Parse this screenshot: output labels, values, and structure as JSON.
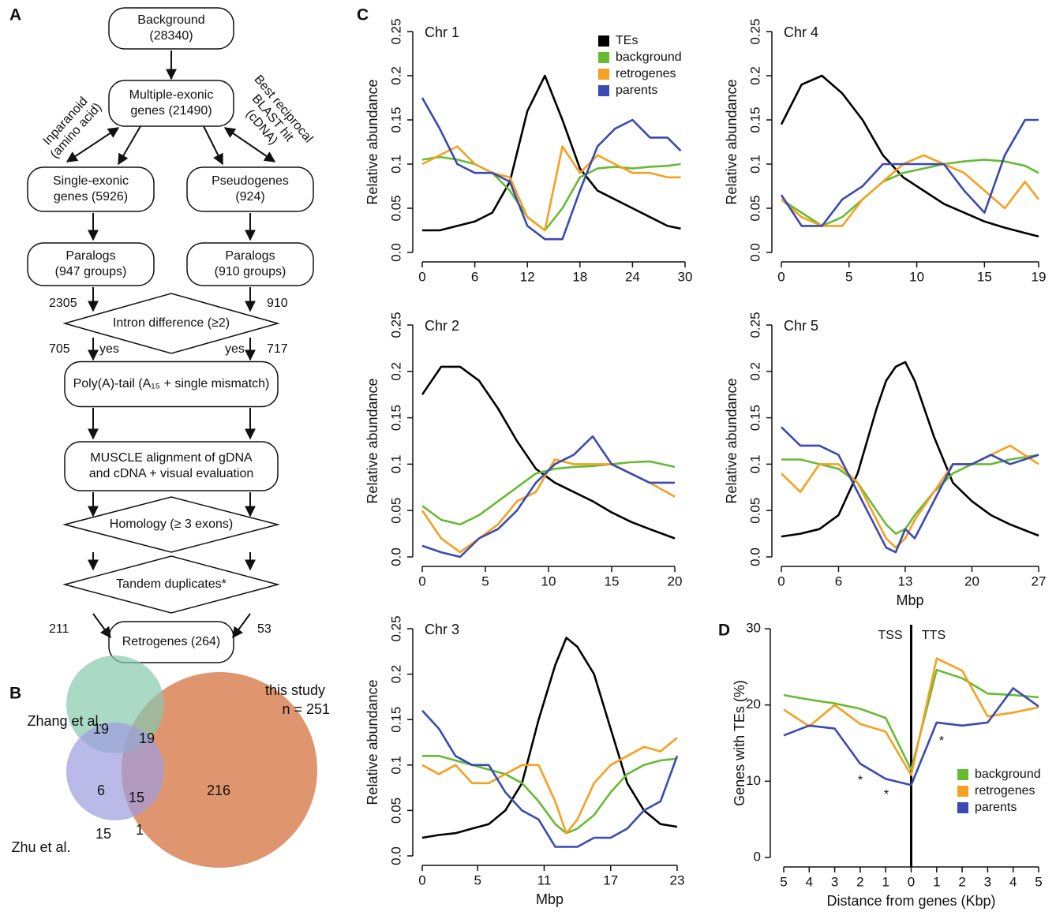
{
  "panel_labels": [
    "A",
    "B",
    "C",
    "D"
  ],
  "flowchart": {
    "nodes": [
      {
        "lines": [
          "Background",
          "(28340)"
        ]
      },
      {
        "lines": [
          "Multiple-exonic",
          "genes (21490)"
        ]
      },
      {
        "lines": [
          "Single-exonic",
          "genes (5926)"
        ]
      },
      {
        "lines": [
          "Pseudogenes",
          "(924)"
        ]
      },
      {
        "lines": [
          "Paralogs",
          "(947 groups)"
        ]
      },
      {
        "lines": [
          "Paralogs",
          "(910 groups)"
        ]
      },
      {
        "lines": [
          "Intron difference (≥2)"
        ]
      },
      {
        "lines": [
          "Poly(A)-tail (A₁₅ + single mismatch)"
        ]
      },
      {
        "lines": [
          "MUSCLE alignment of gDNA",
          "and cDNA + visual evaluation"
        ]
      },
      {
        "lines": [
          "Homology (≥ 3 exons)"
        ]
      },
      {
        "lines": [
          "Tandem duplicates*"
        ]
      },
      {
        "lines": [
          "Retrogenes (264)"
        ]
      }
    ],
    "edge_labels": [
      "2305",
      "910",
      "705",
      "yes",
      "yes",
      "717",
      "211",
      "53"
    ],
    "side_labels": [
      [
        "Inparanoid",
        "(amino acid)"
      ],
      [
        "Best reciprocal",
        "BLAST hit",
        "(cDNA)"
      ]
    ]
  },
  "venn": {
    "sets": [
      {
        "name": "Zhang et al.",
        "color": "#86c9ad"
      },
      {
        "name": "Zhu et al.",
        "color": "#9d9de0"
      },
      {
        "name": "this study",
        "color": "#d98255"
      }
    ],
    "total_label": "n = 251",
    "regions": [
      19,
      19,
      6,
      15,
      15,
      1,
      216
    ]
  },
  "chart_data": [
    {
      "type": "line",
      "title": "Chr 1",
      "y_label": "Relative abundance",
      "legend": "top-center",
      "xlim": [
        0,
        30
      ],
      "xticks": [
        0,
        6,
        12,
        18,
        24,
        30
      ],
      "ylim": [
        0,
        0.25
      ],
      "yticks": [
        {
          "value": 0,
          "label": "0.0"
        },
        0.05,
        0.1,
        0.15,
        0.2,
        0.25
      ],
      "x": [
        0,
        2,
        4,
        6,
        8,
        10,
        12,
        14,
        16,
        18,
        20,
        22,
        24,
        26,
        28,
        29.5
      ],
      "series": [
        {
          "name": "TEs",
          "color": "#000000",
          "values": [
            0.025,
            0.025,
            0.03,
            0.035,
            0.045,
            0.08,
            0.16,
            0.2,
            0.15,
            0.095,
            0.07,
            0.06,
            0.05,
            0.04,
            0.03,
            0.027
          ]
        },
        {
          "name": "background",
          "color": "#66bb33",
          "values": [
            0.105,
            0.108,
            0.105,
            0.1,
            0.09,
            0.07,
            0.04,
            0.025,
            0.05,
            0.085,
            0.095,
            0.097,
            0.095,
            0.097,
            0.098,
            0.1
          ]
        },
        {
          "name": "retrogenes",
          "color": "#f5a020",
          "values": [
            0.1,
            0.11,
            0.12,
            0.1,
            0.09,
            0.085,
            0.04,
            0.025,
            0.12,
            0.09,
            0.11,
            0.1,
            0.09,
            0.09,
            0.085,
            0.085
          ]
        },
        {
          "name": "parents",
          "color": "#3a4ab0",
          "values": [
            0.175,
            0.14,
            0.1,
            0.09,
            0.09,
            0.08,
            0.03,
            0.015,
            0.015,
            0.07,
            0.12,
            0.14,
            0.15,
            0.13,
            0.13,
            0.115
          ]
        }
      ]
    },
    {
      "type": "line",
      "title": "Chr 4",
      "y_label": "Relative abundance",
      "xlim": [
        0,
        19
      ],
      "xticks": [
        0,
        5,
        10,
        15,
        19
      ],
      "ylim": [
        0,
        0.25
      ],
      "yticks": [
        {
          "value": 0,
          "label": "0.0"
        },
        0.05,
        0.1,
        0.15,
        0.2,
        0.25
      ],
      "x": [
        0,
        1.5,
        3,
        4.5,
        6,
        7.5,
        9,
        10.5,
        12,
        13.5,
        15,
        16.5,
        18,
        19
      ],
      "series": [
        {
          "color": "#000000",
          "values": [
            0.145,
            0.19,
            0.2,
            0.18,
            0.15,
            0.11,
            0.085,
            0.07,
            0.055,
            0.045,
            0.035,
            0.028,
            0.022,
            0.018
          ]
        },
        {
          "color": "#66bb33",
          "values": [
            0.06,
            0.045,
            0.03,
            0.04,
            0.06,
            0.08,
            0.09,
            0.095,
            0.1,
            0.103,
            0.105,
            0.103,
            0.098,
            0.09
          ]
        },
        {
          "color": "#f5a020",
          "values": [
            0.06,
            0.04,
            0.03,
            0.03,
            0.06,
            0.08,
            0.1,
            0.11,
            0.1,
            0.09,
            0.07,
            0.05,
            0.08,
            0.06
          ]
        },
        {
          "color": "#3a4ab0",
          "values": [
            0.065,
            0.03,
            0.03,
            0.06,
            0.075,
            0.1,
            0.1,
            0.1,
            0.1,
            0.07,
            0.045,
            0.11,
            0.15,
            0.15
          ]
        }
      ]
    },
    {
      "type": "line",
      "title": "Chr 2",
      "y_label": "Relative abundance",
      "xlim": [
        0,
        20
      ],
      "xticks": [
        0,
        5,
        10,
        15,
        20
      ],
      "ylim": [
        0,
        0.25
      ],
      "yticks": [
        {
          "value": 0,
          "label": "0.0"
        },
        0.05,
        0.1,
        0.15,
        0.2,
        0.25
      ],
      "x": [
        0,
        1.5,
        3,
        4.5,
        6,
        7.5,
        9,
        10.5,
        12,
        13.5,
        15,
        16.5,
        18,
        20
      ],
      "series": [
        {
          "color": "#000000",
          "values": [
            0.175,
            0.205,
            0.205,
            0.19,
            0.16,
            0.125,
            0.095,
            0.08,
            0.07,
            0.06,
            0.048,
            0.038,
            0.03,
            0.02
          ]
        },
        {
          "color": "#66bb33",
          "values": [
            0.055,
            0.04,
            0.035,
            0.045,
            0.06,
            0.075,
            0.09,
            0.095,
            0.097,
            0.098,
            0.1,
            0.102,
            0.103,
            0.097
          ]
        },
        {
          "color": "#f5a020",
          "values": [
            0.05,
            0.02,
            0.005,
            0.02,
            0.035,
            0.06,
            0.07,
            0.105,
            0.1,
            0.1,
            0.1,
            0.09,
            0.08,
            0.065
          ]
        },
        {
          "color": "#3a4ab0",
          "values": [
            0.012,
            0.005,
            0,
            0.02,
            0.03,
            0.05,
            0.08,
            0.1,
            0.11,
            0.13,
            0.1,
            0.09,
            0.08,
            0.08
          ]
        }
      ]
    },
    {
      "type": "line",
      "title": "Chr 5",
      "y_label": "Relative abundance",
      "x_label": "Mbp",
      "xlim": [
        0,
        27
      ],
      "xticks": [
        0,
        6,
        13,
        20,
        27
      ],
      "ylim": [
        0,
        0.25
      ],
      "yticks": [
        {
          "value": 0,
          "label": "0.0"
        },
        0.05,
        0.1,
        0.15,
        0.2,
        0.25
      ],
      "x": [
        0,
        2,
        4,
        6,
        8,
        10,
        11,
        12,
        13,
        14,
        16,
        18,
        20,
        22,
        24,
        27
      ],
      "series": [
        {
          "color": "#000000",
          "values": [
            0.022,
            0.025,
            0.03,
            0.045,
            0.09,
            0.16,
            0.19,
            0.205,
            0.21,
            0.19,
            0.13,
            0.08,
            0.06,
            0.045,
            0.035,
            0.023
          ]
        },
        {
          "color": "#66bb33",
          "values": [
            0.105,
            0.105,
            0.1,
            0.095,
            0.08,
            0.05,
            0.035,
            0.025,
            0.03,
            0.045,
            0.07,
            0.09,
            0.1,
            0.1,
            0.105,
            0.11
          ]
        },
        {
          "color": "#f5a020",
          "values": [
            0.09,
            0.07,
            0.1,
            0.1,
            0.08,
            0.04,
            0.02,
            0.01,
            0.02,
            0.04,
            0.07,
            0.1,
            0.1,
            0.11,
            0.12,
            0.1
          ]
        },
        {
          "color": "#3a4ab0",
          "values": [
            0.14,
            0.12,
            0.12,
            0.11,
            0.07,
            0.03,
            0.01,
            0.005,
            0.03,
            0.02,
            0.06,
            0.1,
            0.1,
            0.11,
            0.1,
            0.11
          ]
        }
      ]
    },
    {
      "type": "line",
      "title": "Chr 3",
      "y_label": "Relative abundance",
      "x_label": "Mbp",
      "xlim": [
        0,
        23
      ],
      "xticks": [
        0,
        5,
        11,
        17,
        23
      ],
      "ylim": [
        0,
        0.25
      ],
      "yticks": [
        {
          "value": 0,
          "label": "0.0"
        },
        0.05,
        0.1,
        0.15,
        0.2,
        0.25
      ],
      "x": [
        0,
        1.5,
        3,
        4.5,
        6,
        7.5,
        9,
        10.5,
        12,
        13,
        14,
        15.5,
        17,
        18.5,
        20,
        21.5,
        23
      ],
      "series": [
        {
          "color": "#000000",
          "values": [
            0.02,
            0.023,
            0.025,
            0.03,
            0.035,
            0.05,
            0.08,
            0.15,
            0.21,
            0.24,
            0.23,
            0.2,
            0.14,
            0.08,
            0.05,
            0.035,
            0.032
          ]
        },
        {
          "color": "#66bb33",
          "values": [
            0.11,
            0.11,
            0.105,
            0.1,
            0.095,
            0.09,
            0.08,
            0.06,
            0.035,
            0.025,
            0.03,
            0.045,
            0.07,
            0.09,
            0.1,
            0.105,
            0.107
          ]
        },
        {
          "color": "#f5a020",
          "values": [
            0.1,
            0.09,
            0.1,
            0.08,
            0.08,
            0.09,
            0.1,
            0.1,
            0.06,
            0.025,
            0.04,
            0.08,
            0.1,
            0.11,
            0.12,
            0.115,
            0.13
          ]
        },
        {
          "color": "#3a4ab0",
          "values": [
            0.16,
            0.14,
            0.11,
            0.1,
            0.1,
            0.07,
            0.05,
            0.04,
            0.01,
            0.01,
            0.01,
            0.02,
            0.02,
            0.03,
            0.05,
            0.06,
            0.11
          ]
        }
      ]
    },
    {
      "type": "line",
      "y_label": "Genes with TEs (%)",
      "x_label": "Distance from genes (Kbp)",
      "legend": "lower-right",
      "xlim": [
        -5,
        5
      ],
      "xticks": [
        {
          "value": -5,
          "label": "5"
        },
        {
          "value": -4,
          "label": "4"
        },
        {
          "value": -3,
          "label": "3"
        },
        {
          "value": -2,
          "label": "2"
        },
        {
          "value": -1,
          "label": "1"
        },
        0,
        1,
        2,
        3,
        4,
        5
      ],
      "ylim": [
        0,
        30
      ],
      "yticks": [
        0,
        10,
        20,
        30
      ],
      "vline": 0,
      "annotations": [
        "TSS",
        "TTS",
        "*",
        "*",
        "*"
      ],
      "x": [
        -5,
        -4,
        -3,
        -2,
        -1,
        0,
        1,
        2,
        3,
        4,
        5
      ],
      "series": [
        {
          "name": "background",
          "color": "#66bb33",
          "values": [
            21.3,
            20.7,
            20.2,
            19.5,
            18.3,
            11.5,
            24.6,
            23.5,
            21.5,
            21.3,
            21
          ]
        },
        {
          "name": "retrogenes",
          "color": "#f5a020",
          "values": [
            19.4,
            17.2,
            20,
            17.5,
            16.5,
            10.8,
            26.1,
            24.5,
            18.5,
            19,
            19.7
          ]
        },
        {
          "name": "parents",
          "color": "#3a4ab0",
          "values": [
            16,
            17.3,
            16.9,
            12.3,
            10.3,
            9.5,
            17.7,
            17.3,
            17.7,
            22.2,
            19.8
          ]
        }
      ]
    }
  ]
}
